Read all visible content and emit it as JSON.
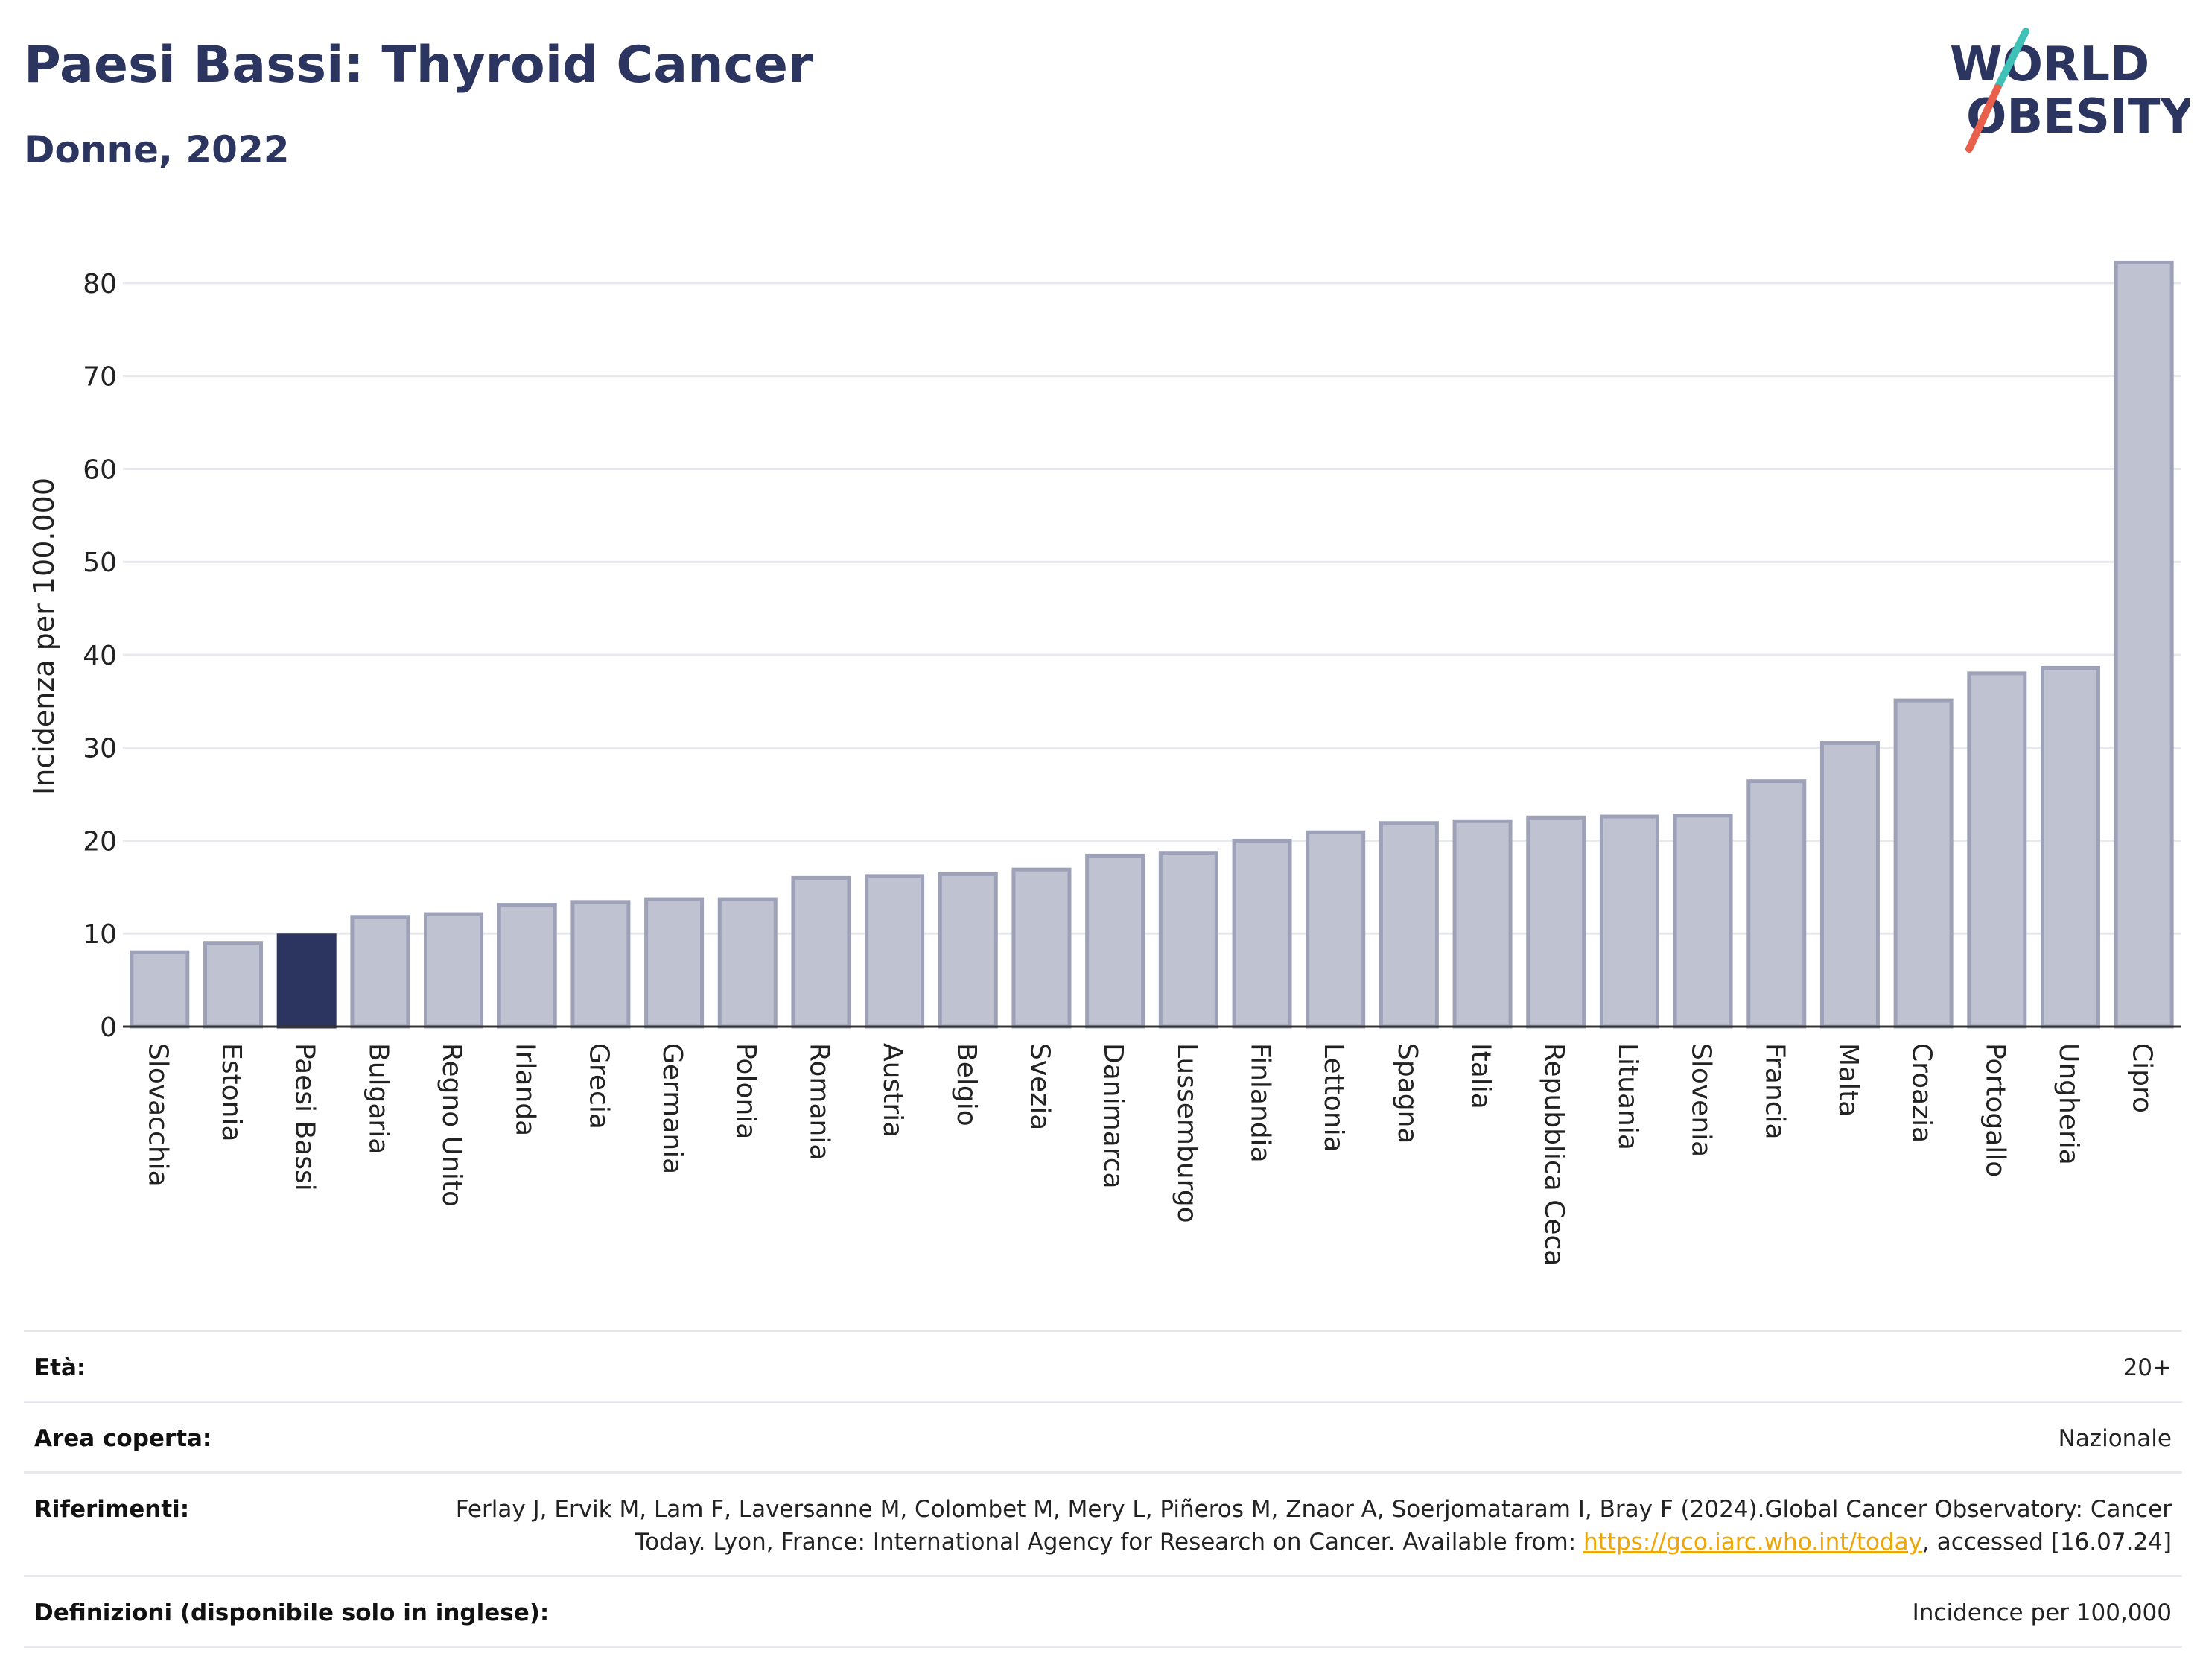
{
  "header": {
    "title": "Paesi Bassi: Thyroid Cancer",
    "subtitle": "Donne, 2022"
  },
  "logo": {
    "line1": "WORLD",
    "line2": "OBESITY",
    "colors": {
      "text": "#2b3560",
      "slash_teal": "#3fc1b8",
      "slash_red": "#e8604c"
    }
  },
  "chart_data": {
    "type": "bar",
    "title": "Paesi Bassi: Thyroid Cancer",
    "subtitle": "Donne, 2022",
    "xlabel": "",
    "ylabel": "Incidenza per 100.000",
    "ylim": [
      0,
      84
    ],
    "yticks": [
      0,
      10,
      20,
      30,
      40,
      50,
      60,
      70,
      80
    ],
    "grid": true,
    "highlight": "Paesi Bassi",
    "colors": {
      "bar": "#bfc2d0",
      "bar_border": "#9da2b9",
      "highlight": "#2b3560",
      "grid": "#e8e9ef",
      "axis": "#333333"
    },
    "categories": [
      "Slovacchia",
      "Estonia",
      "Paesi Bassi",
      "Bulgaria",
      "Regno Unito",
      "Irlanda",
      "Grecia",
      "Germania",
      "Polonia",
      "Romania",
      "Austria",
      "Belgio",
      "Svezia",
      "Danimarca",
      "Lussemburgo",
      "Finlandia",
      "Lettonia",
      "Spagna",
      "Italia",
      "Repubblica Ceca",
      "Lituania",
      "Slovenia",
      "Francia",
      "Malta",
      "Croazia",
      "Portogallo",
      "Ungheria",
      "Cipro"
    ],
    "values": [
      8.0,
      9.0,
      9.8,
      11.8,
      12.1,
      13.1,
      13.4,
      13.7,
      13.7,
      16.0,
      16.2,
      16.4,
      16.9,
      18.4,
      18.7,
      20.0,
      20.9,
      21.9,
      22.1,
      22.5,
      22.6,
      22.7,
      26.4,
      30.5,
      35.1,
      38.0,
      38.6,
      82.2
    ]
  },
  "info": {
    "rows": [
      {
        "label": "Età:",
        "value": "20+"
      },
      {
        "label": "Area coperta:",
        "value": "Nazionale"
      },
      {
        "label": "Riferimenti:",
        "value_before": "Ferlay J, Ervik M, Lam F, Laversanne M, Colombet M, Mery L, Piñeros M, Znaor A, Soerjomataram I, Bray F (2024).Global Cancer Observatory: Cancer Today. Lyon, France: International Agency for Research on Cancer. Available from: ",
        "link": "https://gco.iarc.who.int/today",
        "value_after": ", accessed [16.07.24]"
      },
      {
        "label": "Definizioni (disponibile solo in inglese):",
        "value": "Incidence per 100,000"
      }
    ]
  }
}
